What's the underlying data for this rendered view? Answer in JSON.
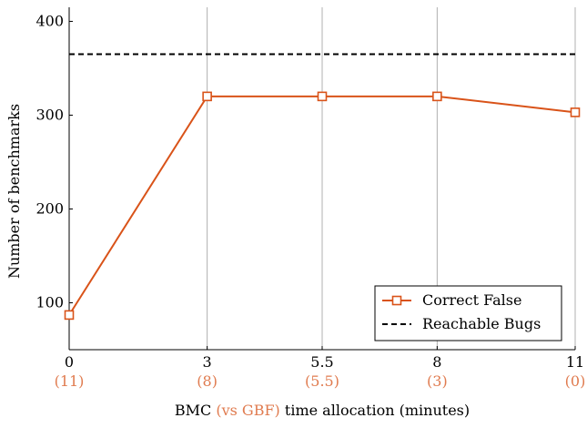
{
  "chart_data": {
    "type": "line",
    "title": "",
    "xlabel": {
      "prefix": "BMC",
      "highlight": "(vs GBF)",
      "suffix": "time allocation (minutes)"
    },
    "ylabel": "Number of benchmarks",
    "x": [
      0,
      3,
      5.5,
      8,
      11
    ],
    "x_tick_labels": [
      "0",
      "3",
      "5.5",
      "8",
      "11"
    ],
    "x_secondary_tick_labels": [
      "(11)",
      "(8)",
      "(5.5)",
      "(3)",
      "(0)"
    ],
    "xlim": [
      0,
      11
    ],
    "ylim": [
      50,
      415
    ],
    "y_ticks": [
      100,
      200,
      300,
      400
    ],
    "grid": "vertical",
    "legend_position": "bottom-right",
    "series": [
      {
        "name": "Correct False",
        "values": [
          87,
          320,
          320,
          320,
          303
        ],
        "color": "#d95319",
        "marker": "square",
        "line_style": "solid"
      }
    ],
    "reference_lines": [
      {
        "name": "Reachable Bugs",
        "value": 365,
        "color": "#000000",
        "line_style": "dashed"
      }
    ],
    "colors": {
      "accent": "#e07b4f",
      "axis": "#000000",
      "grid": "#b0b0b0"
    }
  }
}
